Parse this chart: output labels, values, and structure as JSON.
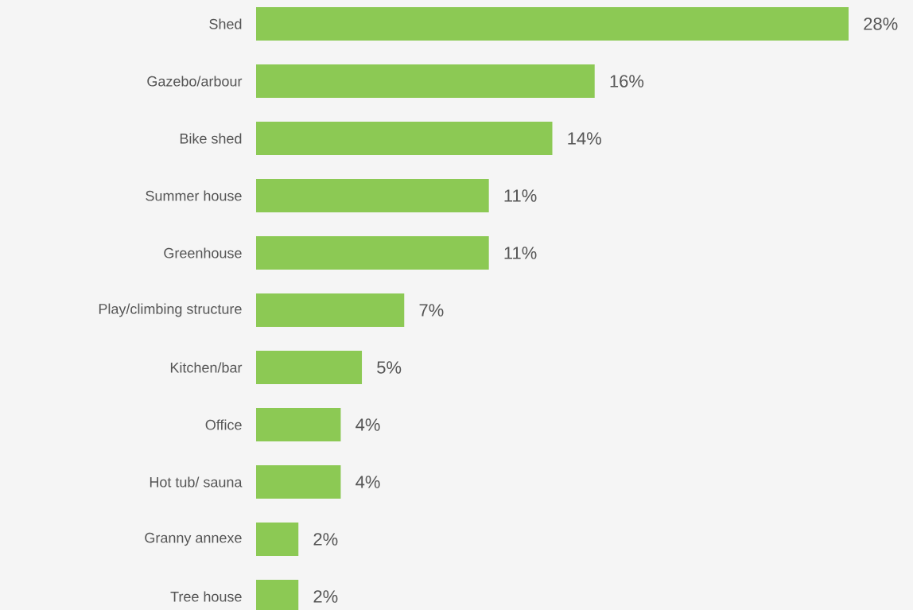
{
  "chart_data": {
    "type": "bar",
    "orientation": "horizontal",
    "categories": [
      "Shed",
      "Gazebo/arbour",
      "Bike shed",
      "Summer house",
      "Greenhouse",
      "Play/climbing structure",
      "Kitchen/bar",
      "Office",
      "Hot tub/ sauna",
      "Granny annexe",
      "Tree house"
    ],
    "values": [
      28,
      16,
      14,
      11,
      11,
      7,
      5,
      4,
      4,
      2,
      2
    ],
    "value_labels": [
      "28%",
      "16%",
      "14%",
      "11%",
      "11%",
      "7%",
      "5%",
      "4%",
      "4%",
      "2%",
      "2%"
    ],
    "color": "#8cc954"
  }
}
